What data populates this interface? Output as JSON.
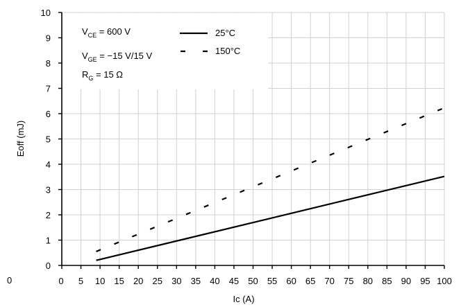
{
  "chart_data": {
    "type": "line",
    "xlabel": "Ic (A)",
    "ylabel": "Eoff (mJ)",
    "xlim": [
      0,
      100
    ],
    "ylim": [
      0,
      10
    ],
    "x_ticks": [
      "0",
      "5",
      "10",
      "15",
      "20",
      "25",
      "30",
      "35",
      "40",
      "45",
      "50",
      "55",
      "60",
      "65",
      "70",
      "75",
      "80",
      "85",
      "90",
      "95",
      "100"
    ],
    "y_ticks": [
      "0",
      "1",
      "2",
      "3",
      "4",
      "5",
      "6",
      "7",
      "8",
      "9",
      "10"
    ],
    "stray_label": "0",
    "grid": true,
    "legend_position": "top-left",
    "conditions": [
      {
        "main": "V",
        "sub": "CE",
        "rest": " = 600 V"
      },
      {
        "main": "V",
        "sub": "GE",
        "rest": " = −15 V/15 V"
      },
      {
        "main": "R",
        "sub": "G",
        "rest": " = 15 Ω"
      }
    ],
    "series": [
      {
        "name": "25°C",
        "style": "solid",
        "color": "#000000",
        "x": [
          9,
          100
        ],
        "y": [
          0.2,
          3.52
        ]
      },
      {
        "name": "150°C",
        "style": "dashed",
        "color": "#000000",
        "x": [
          9,
          100
        ],
        "y": [
          0.55,
          6.23
        ]
      }
    ]
  }
}
